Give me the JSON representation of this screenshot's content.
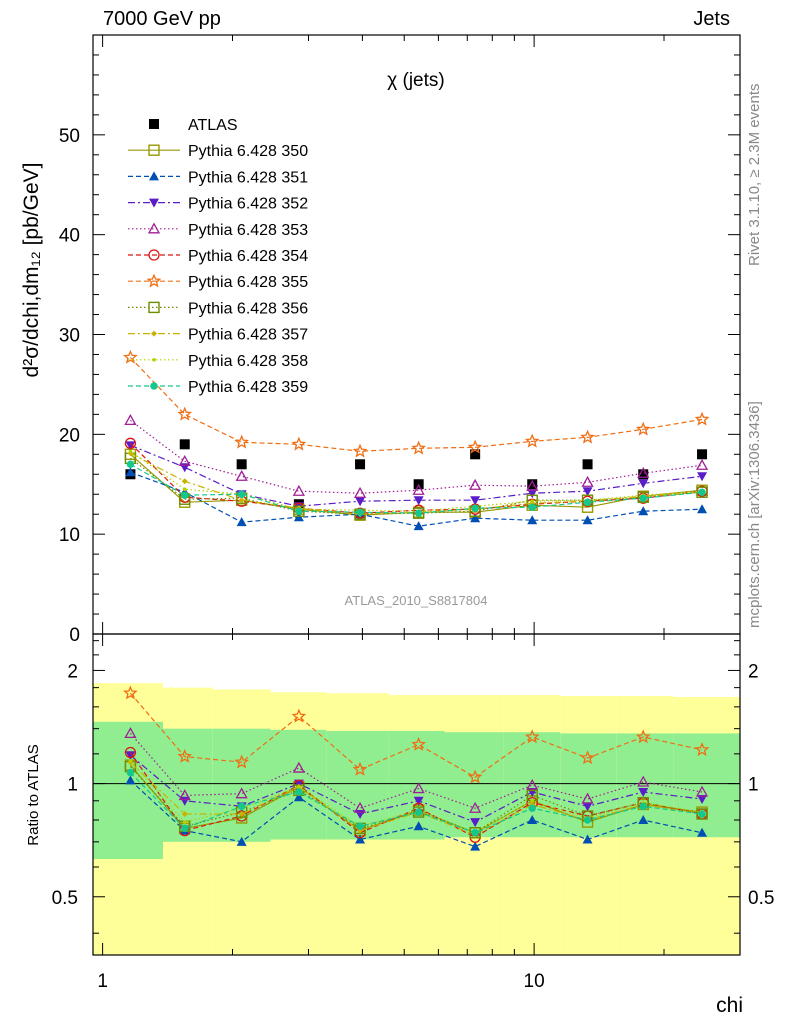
{
  "header": {
    "left": "7000 GeV pp",
    "right": "Jets"
  },
  "side_labels": {
    "rivet": "Rivet 3.1.10, ≥ 2.3M events",
    "mcplots": "mcplots.cern.ch [arXiv:1306.3436]"
  },
  "watermark": "ATLAS_2010_S8817804",
  "chart_data": [
    {
      "type": "scatter",
      "title": "χ (jets)",
      "ylabel": "d²σ/dchi,dm₁₂ [pb/GeV]",
      "xlabel": "",
      "xscale": "log",
      "xlim": [
        0.95,
        30
      ],
      "ylim": [
        0,
        60
      ],
      "yticks": [
        0,
        10,
        20,
        30,
        40,
        50
      ],
      "legend_position": "top-left",
      "x": [
        1.16,
        1.55,
        2.1,
        2.85,
        3.95,
        5.4,
        7.3,
        9.9,
        13.3,
        17.9,
        24.5
      ],
      "series": [
        {
          "name": "ATLAS",
          "color": "#000000",
          "marker": "square-filled",
          "line": "none",
          "values": [
            16.0,
            19.0,
            17.0,
            13.0,
            17.0,
            15.0,
            18.0,
            15.0,
            17.0,
            16.0,
            18.0
          ]
        },
        {
          "name": "Pythia 6.428 350",
          "color": "#999900",
          "marker": "square-open",
          "line": "solid",
          "values": [
            18.0,
            13.2,
            13.4,
            12.5,
            11.9,
            12.2,
            12.2,
            12.9,
            12.7,
            13.8,
            14.4
          ]
        },
        {
          "name": "Pythia 6.428 351",
          "color": "#0050b4",
          "marker": "triangle-up-filled",
          "line": "dashed",
          "values": [
            16.2,
            14.2,
            11.2,
            11.7,
            12.0,
            10.8,
            11.6,
            11.4,
            11.4,
            12.3,
            12.5
          ]
        },
        {
          "name": "Pythia 6.428 352",
          "color": "#5a1ec8",
          "marker": "triangle-down-filled",
          "line": "dashdot",
          "values": [
            18.9,
            16.7,
            14.0,
            12.8,
            13.3,
            13.4,
            13.4,
            14.1,
            14.3,
            15.1,
            15.8
          ]
        },
        {
          "name": "Pythia 6.428 353",
          "color": "#a01e96",
          "marker": "triangle-up-open",
          "line": "dotted",
          "values": [
            21.4,
            17.3,
            15.8,
            14.3,
            14.1,
            14.4,
            14.9,
            14.8,
            15.2,
            16.1,
            16.9
          ]
        },
        {
          "name": "Pythia 6.428 354",
          "color": "#dc1414",
          "marker": "circle-open",
          "line": "dashed",
          "values": [
            19.1,
            13.7,
            13.3,
            12.6,
            12.1,
            12.4,
            12.5,
            13.0,
            13.3,
            13.6,
            14.3
          ]
        },
        {
          "name": "Pythia 6.428 355",
          "color": "#f06e14",
          "marker": "star-open",
          "line": "dashed",
          "values": [
            27.7,
            22.0,
            19.2,
            19.0,
            18.3,
            18.6,
            18.7,
            19.3,
            19.7,
            20.5,
            21.5
          ]
        },
        {
          "name": "Pythia 6.428 356",
          "color": "#6e8c00",
          "marker": "square-open",
          "line": "dotted",
          "values": [
            17.6,
            13.5,
            13.6,
            12.3,
            12.0,
            12.1,
            12.3,
            13.4,
            13.4,
            13.7,
            14.2
          ]
        },
        {
          "name": "Pythia 6.428 357",
          "color": "#c8b400",
          "marker": "diamond-small",
          "line": "dashdot",
          "values": [
            18.1,
            15.3,
            13.4,
            12.6,
            12.0,
            12.2,
            12.5,
            13.1,
            13.3,
            13.8,
            14.2
          ]
        },
        {
          "name": "Pythia 6.428 358",
          "color": "#b4d200",
          "marker": "dot",
          "line": "dotted",
          "values": [
            18.3,
            14.5,
            14.0,
            12.5,
            12.4,
            12.3,
            12.8,
            13.3,
            13.4,
            13.9,
            14.3
          ]
        },
        {
          "name": "Pythia 6.428 359",
          "color": "#14c88c",
          "marker": "circle-filled",
          "line": "dashed",
          "values": [
            17.0,
            13.9,
            14.0,
            12.3,
            12.2,
            12.1,
            12.6,
            12.7,
            13.2,
            13.6,
            14.2
          ]
        }
      ]
    },
    {
      "type": "scatter",
      "title": "",
      "ylabel": "Ratio to ATLAS",
      "xlabel": "chi",
      "xscale": "log",
      "xlim": [
        0.95,
        30
      ],
      "ylim": [
        0.35,
        2.5
      ],
      "yticks": [
        0.5,
        1,
        2
      ],
      "xticks": [
        1,
        10
      ],
      "bins": [
        0.95,
        1.38,
        1.8,
        2.45,
        3.3,
        4.6,
        6.2,
        8.5,
        11.5,
        15.5,
        21.0,
        30.0
      ],
      "band_inner": {
        "color": "#90ee90",
        "low": [
          0.63,
          0.7,
          0.7,
          0.71,
          0.71,
          0.71,
          0.72,
          0.72,
          0.72,
          0.72,
          0.72
        ],
        "high": [
          1.46,
          1.4,
          1.4,
          1.39,
          1.38,
          1.38,
          1.37,
          1.37,
          1.36,
          1.36,
          1.36
        ]
      },
      "band_outer": {
        "color": "#ffff99",
        "low": [
          0.35,
          0.35,
          0.35,
          0.35,
          0.35,
          0.35,
          0.35,
          0.35,
          0.35,
          0.35,
          0.35
        ],
        "high": [
          1.85,
          1.8,
          1.78,
          1.75,
          1.74,
          1.72,
          1.72,
          1.72,
          1.71,
          1.71,
          1.7
        ]
      },
      "series": [
        {
          "name": "Pythia 6.428 350",
          "values": [
            1.12,
            0.76,
            0.81,
            0.98,
            0.75,
            0.85,
            0.74,
            0.9,
            0.79,
            0.88,
            0.84
          ]
        },
        {
          "name": "Pythia 6.428 351",
          "values": [
            1.02,
            0.75,
            0.7,
            0.92,
            0.71,
            0.77,
            0.68,
            0.8,
            0.71,
            0.8,
            0.74
          ]
        },
        {
          "name": "Pythia 6.428 352",
          "values": [
            1.19,
            0.9,
            0.87,
            1.0,
            0.83,
            0.9,
            0.79,
            0.95,
            0.87,
            0.95,
            0.91
          ]
        },
        {
          "name": "Pythia 6.428 353",
          "values": [
            1.36,
            0.93,
            0.94,
            1.1,
            0.86,
            0.97,
            0.86,
            0.99,
            0.91,
            1.01,
            0.95
          ]
        },
        {
          "name": "Pythia 6.428 354",
          "values": [
            1.21,
            0.75,
            0.82,
            0.99,
            0.74,
            0.86,
            0.72,
            0.89,
            0.82,
            0.89,
            0.83
          ]
        },
        {
          "name": "Pythia 6.428 355",
          "values": [
            1.74,
            1.18,
            1.14,
            1.51,
            1.09,
            1.27,
            1.04,
            1.33,
            1.17,
            1.33,
            1.23
          ]
        },
        {
          "name": "Pythia 6.428 356",
          "values": [
            1.11,
            0.77,
            0.84,
            0.96,
            0.76,
            0.84,
            0.74,
            0.93,
            0.82,
            0.89,
            0.83
          ]
        },
        {
          "name": "Pythia 6.428 357",
          "values": [
            1.14,
            0.83,
            0.83,
            0.98,
            0.75,
            0.84,
            0.73,
            0.88,
            0.8,
            0.88,
            0.83
          ]
        },
        {
          "name": "Pythia 6.428 358",
          "values": [
            1.15,
            0.79,
            0.86,
            0.98,
            0.77,
            0.85,
            0.74,
            0.9,
            0.81,
            0.89,
            0.84
          ]
        },
        {
          "name": "Pythia 6.428 359",
          "values": [
            1.07,
            0.76,
            0.87,
            0.95,
            0.77,
            0.84,
            0.74,
            0.86,
            0.8,
            0.87,
            0.83
          ]
        }
      ]
    }
  ]
}
